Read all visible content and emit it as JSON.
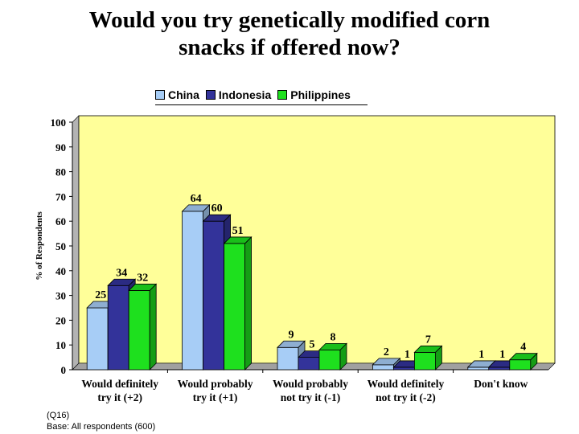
{
  "chart_data": {
    "type": "bar",
    "title_lines": [
      "Would you try genetically modified corn",
      "snacks if offered now?"
    ],
    "ylabel": "% of Respondents",
    "xlabel": "",
    "ylim": [
      0,
      100
    ],
    "yticks": [
      0,
      10,
      20,
      30,
      40,
      50,
      60,
      70,
      80,
      90,
      100
    ],
    "grid": false,
    "legend_position": "top",
    "categories": [
      [
        "Would definitely",
        "try it (+2)"
      ],
      [
        "Would probably",
        "try it (+1)"
      ],
      [
        "Would probably",
        "not try it (-1)"
      ],
      [
        "Would definitely",
        "not try it (-2)"
      ],
      [
        "Don't know",
        ""
      ]
    ],
    "series": [
      {
        "name": "China",
        "color": "#a7cdf6",
        "values": [
          25,
          64,
          9,
          2,
          1
        ]
      },
      {
        "name": "Indonesia",
        "color": "#33339a",
        "values": [
          34,
          60,
          5,
          1,
          1
        ]
      },
      {
        "name": "Philippines",
        "color": "#1ee01e",
        "values": [
          32,
          51,
          8,
          7,
          4
        ]
      }
    ],
    "plot_background": "#ffff99"
  },
  "footnote": {
    "line1": "(Q16)",
    "line2": "Base: All respondents (600)"
  }
}
